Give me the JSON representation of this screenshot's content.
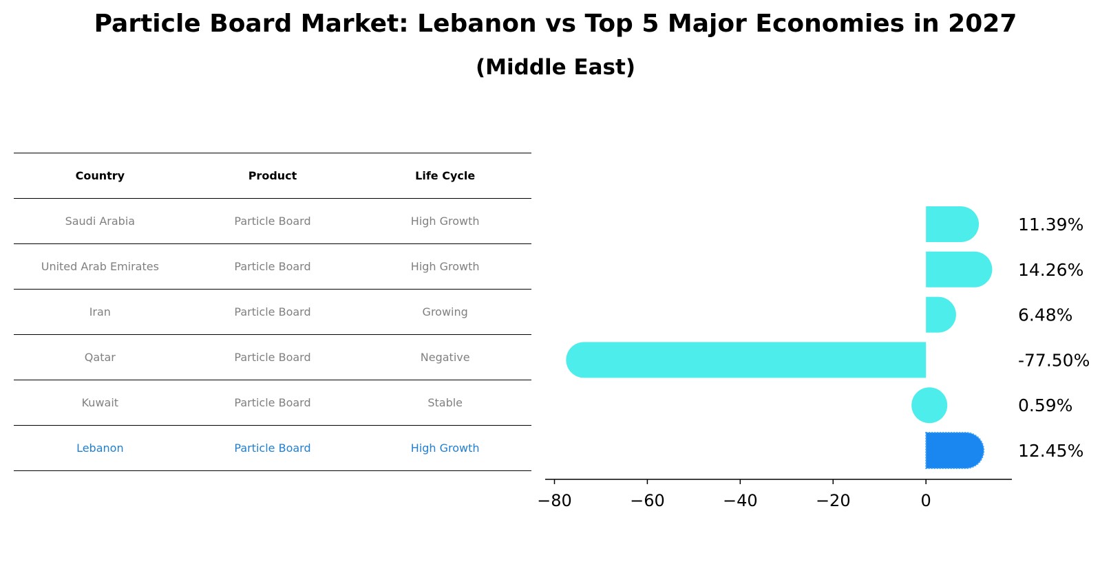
{
  "title": "Particle Board Market: Lebanon vs Top 5 Major Economies in 2027",
  "subtitle": "(Middle East)",
  "table": {
    "headers": [
      "Country",
      "Product",
      "Life Cycle"
    ],
    "rows": [
      [
        "Saudi Arabia",
        "Particle Board",
        "High Growth"
      ],
      [
        "United Arab Emirates",
        "Particle Board",
        "High Growth"
      ],
      [
        "Iran",
        "Particle Board",
        "Growing"
      ],
      [
        "Qatar",
        "Particle Board",
        "Negative"
      ],
      [
        "Kuwait",
        "Particle Board",
        "Stable"
      ],
      [
        "Lebanon",
        "Particle Board",
        "High Growth"
      ]
    ]
  },
  "chart_data": {
    "type": "bar",
    "orientation": "horizontal",
    "categories": [
      "Saudi Arabia",
      "United Arab Emirates",
      "Iran",
      "Qatar",
      "Kuwait",
      "Lebanon"
    ],
    "values": [
      11.39,
      14.26,
      6.48,
      -77.5,
      0.59,
      12.45
    ],
    "labels": [
      "11.39%",
      "14.26%",
      "6.48%",
      "-77.50%",
      "0.59%",
      "12.45%"
    ],
    "highlight": "Lebanon",
    "xlim": [
      -82,
      18.5
    ],
    "xticks": [
      -80,
      -60,
      -40,
      -20,
      0
    ],
    "xtick_labels": [
      "−80",
      "−60",
      "−40",
      "−20",
      "0"
    ],
    "colors": {
      "default": "#4dedeb",
      "highlight": "#1a86f0"
    },
    "grid": false
  }
}
